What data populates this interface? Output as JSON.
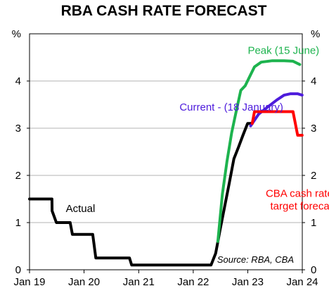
{
  "chart_data": {
    "type": "line",
    "title": "RBA CASH RATE FORECAST",
    "y_unit_left": "%",
    "y_unit_right": "%",
    "ylim": [
      0,
      5
    ],
    "yticks": [
      0,
      1,
      2,
      3,
      4
    ],
    "xlim": [
      "2019-01-01",
      "2024-01-01"
    ],
    "xticks": [
      {
        "date": "2019-01-01",
        "label": "Jan 19"
      },
      {
        "date": "2020-01-01",
        "label": "Jan 20"
      },
      {
        "date": "2021-01-01",
        "label": "Jan 21"
      },
      {
        "date": "2022-01-01",
        "label": "Jan 22"
      },
      {
        "date": "2023-01-01",
        "label": "Jan 23"
      },
      {
        "date": "2024-01-01",
        "label": "Jan 24"
      }
    ],
    "grid": "horizontal",
    "series": [
      {
        "name": "Actual",
        "color": "#000000",
        "points": [
          [
            "2019-01-01",
            1.5
          ],
          [
            "2019-05-31",
            1.5
          ],
          [
            "2019-06-01",
            1.25
          ],
          [
            "2019-06-30",
            1.0
          ],
          [
            "2019-09-30",
            1.0
          ],
          [
            "2019-10-15",
            0.75
          ],
          [
            "2020-02-28",
            0.75
          ],
          [
            "2020-03-20",
            0.25
          ],
          [
            "2020-10-31",
            0.25
          ],
          [
            "2020-11-15",
            0.1
          ],
          [
            "2022-04-30",
            0.1
          ],
          [
            "2022-05-31",
            0.35
          ],
          [
            "2022-06-30",
            0.85
          ],
          [
            "2022-07-31",
            1.35
          ],
          [
            "2022-08-31",
            1.85
          ],
          [
            "2022-09-30",
            2.35
          ],
          [
            "2022-10-31",
            2.6
          ],
          [
            "2022-11-30",
            2.85
          ],
          [
            "2022-12-31",
            3.1
          ],
          [
            "2023-01-31",
            3.1
          ]
        ]
      },
      {
        "name": "Peak (15 June)",
        "color": "#1db34e",
        "points": [
          [
            "2022-06-15",
            0.6
          ],
          [
            "2022-07-15",
            1.6
          ],
          [
            "2022-08-15",
            2.3
          ],
          [
            "2022-09-15",
            2.9
          ],
          [
            "2022-10-15",
            3.35
          ],
          [
            "2022-11-15",
            3.8
          ],
          [
            "2022-12-15",
            3.9
          ],
          [
            "2023-01-15",
            4.1
          ],
          [
            "2023-02-15",
            4.3
          ],
          [
            "2023-04-01",
            4.4
          ],
          [
            "2023-06-15",
            4.43
          ],
          [
            "2023-09-01",
            4.43
          ],
          [
            "2023-10-31",
            4.42
          ],
          [
            "2023-12-15",
            4.35
          ]
        ]
      },
      {
        "name": "Current - (18 January)",
        "color": "#4d1bdc",
        "points": [
          [
            "2023-01-20",
            3.05
          ],
          [
            "2023-03-15",
            3.3
          ],
          [
            "2023-05-15",
            3.45
          ],
          [
            "2023-07-15",
            3.6
          ],
          [
            "2023-09-01",
            3.7
          ],
          [
            "2023-10-15",
            3.73
          ],
          [
            "2023-11-30",
            3.73
          ],
          [
            "2023-12-31",
            3.7
          ]
        ]
      },
      {
        "name": "CBA cash rate target forecast",
        "color": "#ff0000",
        "points": [
          [
            "2023-01-31",
            3.1
          ],
          [
            "2023-02-15",
            3.35
          ],
          [
            "2023-10-31",
            3.35
          ],
          [
            "2023-12-01",
            2.85
          ],
          [
            "2023-12-31",
            2.85
          ]
        ]
      }
    ],
    "annotations": [
      {
        "text": "Actual",
        "x": "2019-09-01",
        "y": 1.3
      },
      {
        "text": "Peak (15 June)",
        "x": "2023-01-01",
        "y": 4.65
      },
      {
        "text": "Current - (18 January)",
        "x": "2021-10-01",
        "y": 3.45
      },
      {
        "text": "CBA cash rate",
        "x": "2023-05-01",
        "y": 1.62
      },
      {
        "text": "target forecast",
        "x": "2023-06-01",
        "y": 1.35
      }
    ],
    "source": "Source: RBA, CBA"
  }
}
